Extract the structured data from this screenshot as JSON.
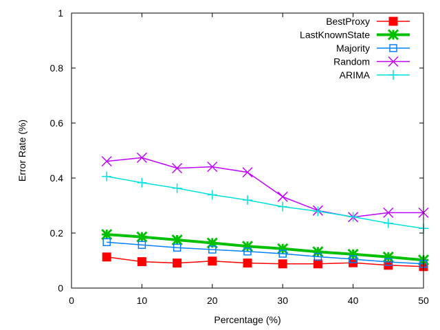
{
  "chart_data": {
    "type": "line",
    "title": "",
    "xlabel": "Percentage (%)",
    "ylabel": "Error Rate (%)",
    "xlim": [
      0,
      50
    ],
    "ylim": [
      0,
      1
    ],
    "xticks": [
      0,
      10,
      20,
      30,
      40,
      50
    ],
    "yticks": [
      0,
      0.2,
      0.4,
      0.6,
      0.8,
      1
    ],
    "xtick_labels": [
      "0",
      "10",
      "20",
      "30",
      "40",
      "50"
    ],
    "ytick_labels": [
      "0",
      "0.2",
      "0.4",
      "0.6",
      "0.8",
      "1"
    ],
    "legend_position": "top-right",
    "x": [
      5,
      10,
      15,
      20,
      25,
      30,
      35,
      40,
      45,
      50
    ],
    "series": [
      {
        "name": "BestProxy",
        "color": "#ff0000",
        "marker": "filled-square",
        "values": [
          0.113,
          0.096,
          0.091,
          0.098,
          0.091,
          0.088,
          0.088,
          0.092,
          0.083,
          0.078
        ]
      },
      {
        "name": "LastKnownState",
        "color": "#00c000",
        "marker": "asterisk",
        "values": [
          0.195,
          0.186,
          0.175,
          0.164,
          0.152,
          0.143,
          0.132,
          0.123,
          0.113,
          0.102
        ]
      },
      {
        "name": "Majority",
        "color": "#0080ff",
        "marker": "open-square",
        "values": [
          0.167,
          0.157,
          0.147,
          0.14,
          0.133,
          0.125,
          0.114,
          0.105,
          0.095,
          0.088
        ]
      },
      {
        "name": "Random",
        "color": "#c000ff",
        "marker": "cross",
        "values": [
          0.461,
          0.474,
          0.436,
          0.441,
          0.421,
          0.332,
          0.282,
          0.258,
          0.274,
          0.274
        ]
      },
      {
        "name": "ARIMA",
        "color": "#00e0e0",
        "marker": "plus",
        "values": [
          0.406,
          0.383,
          0.363,
          0.339,
          0.32,
          0.296,
          0.279,
          0.259,
          0.236,
          0.217
        ]
      }
    ]
  }
}
